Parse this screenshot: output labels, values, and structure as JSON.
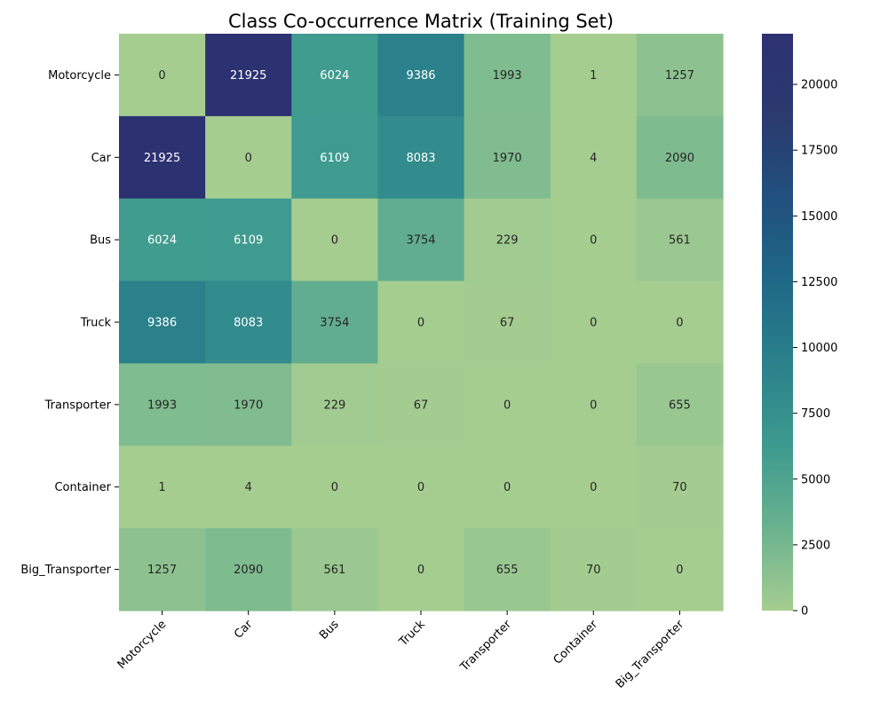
{
  "chart_data": {
    "type": "heatmap",
    "title": "Class Co-occurrence Matrix (Training Set)",
    "xlabel": "",
    "ylabel": "",
    "x_categories": [
      "Motorcycle",
      "Car",
      "Bus",
      "Truck",
      "Transporter",
      "Container",
      "Big_Transporter"
    ],
    "y_categories": [
      "Motorcycle",
      "Car",
      "Bus",
      "Truck",
      "Transporter",
      "Container",
      "Big_Transporter"
    ],
    "values": [
      [
        0,
        21925,
        6024,
        9386,
        1993,
        1,
        1257
      ],
      [
        21925,
        0,
        6109,
        8083,
        1970,
        4,
        2090
      ],
      [
        6024,
        6109,
        0,
        3754,
        229,
        0,
        561
      ],
      [
        9386,
        8083,
        3754,
        0,
        67,
        0,
        0
      ],
      [
        1993,
        1970,
        229,
        67,
        0,
        0,
        655
      ],
      [
        1,
        4,
        0,
        0,
        0,
        0,
        70
      ],
      [
        1257,
        2090,
        561,
        0,
        655,
        70,
        0
      ]
    ],
    "colorbar": {
      "min": 0,
      "max": 21925,
      "ticks": [
        0,
        2500,
        5000,
        7500,
        10000,
        12500,
        15000,
        17500,
        20000
      ],
      "colormap": "crest",
      "stops": [
        "#a5cd90",
        "#6ab28f",
        "#3d9a8f",
        "#2a818b",
        "#1f6886",
        "#21507e",
        "#2b3a6f",
        "#2c3172"
      ]
    },
    "annotation_colors": {
      "dark_text": "#262626",
      "light_text": "#ffffff"
    }
  }
}
